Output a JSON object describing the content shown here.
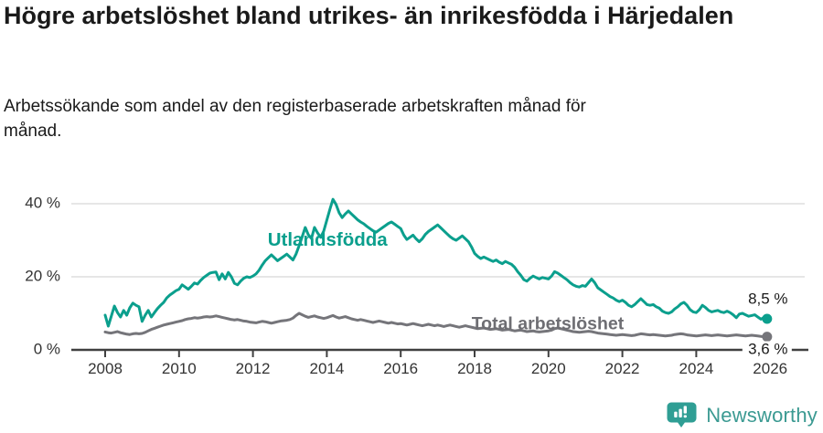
{
  "header": {
    "title": "Högre arbetslöshet bland utrikes- än inrikesfödda i Härjedalen",
    "subtitle": "Arbetssökande som andel av den registerbaserade arbetskraften månad för månad."
  },
  "footer": {
    "brand": "Newsworthy"
  },
  "colors": {
    "accent_teal": "#0b9f8d",
    "line_gray": "#75757a",
    "label_gray": "#6e6e73",
    "axis": "#404040",
    "tick_text": "#333333",
    "gridline": "#d8d8d8",
    "text_dark": "#1a1a1a",
    "logo_teal": "#2f9e94"
  },
  "chart_data": {
    "type": "line",
    "title": "Högre arbetslöshet bland utrikes- än inrikesfödda i Härjedalen",
    "subtitle": "Arbetssökande som andel av den registerbaserade arbetskraften månad för månad.",
    "frequency": "monthly",
    "x_start_year": 2008,
    "x_ticks": [
      2008,
      2010,
      2012,
      2014,
      2016,
      2018,
      2020,
      2022,
      2024,
      2026
    ],
    "y_ticks": [
      {
        "value": 0,
        "label": "0 %"
      },
      {
        "value": 20,
        "label": "20 %"
      },
      {
        "value": 40,
        "label": "40 %"
      }
    ],
    "ylim": [
      0,
      44
    ],
    "grid": "horizontal-only",
    "legend_position": "inline-labels",
    "series": [
      {
        "id": "utlandsfodda",
        "name": "Utlandsfödda",
        "color": "#0b9f8d",
        "label_color": "#0b9f8d",
        "end_label": "8,5 %",
        "end_label_position": "above",
        "inline_label": {
          "x_year": 2014.02,
          "y_pct": 29.8,
          "size": 20.5
        },
        "values": [
          9.5,
          6.5,
          9.2,
          12.0,
          10.2,
          9.0,
          10.8,
          9.5,
          11.5,
          12.8,
          12.2,
          11.8,
          7.8,
          9.5,
          10.8,
          9.0,
          10.2,
          11.3,
          12.2,
          13.0,
          14.2,
          15.0,
          15.6,
          16.2,
          16.6,
          17.8,
          17.2,
          16.6,
          17.4,
          18.3,
          18.0,
          19.0,
          19.8,
          20.4,
          21.0,
          21.2,
          21.3,
          19.2,
          20.8,
          19.4,
          21.2,
          20.0,
          18.2,
          17.8,
          18.8,
          19.6,
          20.0,
          19.8,
          20.2,
          20.8,
          21.8,
          23.2,
          24.4,
          25.2,
          26.0,
          25.2,
          24.4,
          25.0,
          25.6,
          26.2,
          25.4,
          24.6,
          26.2,
          28.5,
          31.0,
          33.5,
          31.5,
          30.5,
          33.5,
          32.0,
          30.8,
          32.5,
          35.5,
          38.5,
          41.2,
          39.8,
          37.5,
          36.2,
          37.2,
          38.0,
          37.2,
          36.4,
          35.6,
          35.0,
          34.5,
          33.8,
          33.2,
          32.6,
          32.2,
          32.8,
          33.4,
          34.0,
          34.6,
          35.0,
          34.4,
          33.8,
          33.2,
          31.4,
          30.2,
          30.8,
          31.4,
          30.4,
          29.6,
          30.4,
          31.6,
          32.4,
          33.0,
          33.6,
          34.2,
          33.4,
          32.6,
          31.8,
          31.0,
          30.4,
          30.0,
          30.6,
          31.2,
          30.4,
          29.6,
          28.2,
          26.4,
          25.6,
          25.0,
          25.4,
          25.0,
          24.6,
          24.2,
          24.6,
          24.0,
          23.6,
          24.2,
          23.8,
          23.4,
          22.6,
          21.4,
          20.4,
          19.2,
          18.8,
          19.6,
          20.2,
          19.8,
          19.4,
          19.8,
          19.6,
          19.4,
          20.2,
          21.4,
          21.0,
          20.4,
          19.8,
          19.2,
          18.4,
          17.8,
          17.4,
          17.2,
          17.6,
          17.4,
          18.4,
          19.4,
          18.4,
          17.0,
          16.4,
          15.8,
          15.2,
          14.6,
          14.2,
          13.6,
          13.2,
          13.6,
          13.0,
          12.2,
          11.8,
          12.4,
          13.2,
          14.0,
          13.2,
          12.4,
          12.2,
          12.4,
          11.8,
          11.4,
          10.6,
          10.2,
          10.0,
          10.4,
          11.2,
          11.8,
          12.6,
          13.0,
          12.2,
          11.0,
          10.4,
          10.2,
          11.0,
          12.2,
          11.6,
          10.8,
          10.4,
          10.6,
          10.8,
          10.4,
          10.2,
          10.6,
          10.2,
          9.6,
          8.8,
          9.8,
          10.0,
          9.6,
          9.2,
          9.4,
          9.6,
          9.0,
          8.4,
          8.9,
          8.5
        ]
      },
      {
        "id": "total",
        "name": "Total arbetslöshet",
        "color": "#75757a",
        "label_color": "#6e6e73",
        "end_label": "3,6 %",
        "end_label_position": "axis",
        "inline_label": {
          "x_year": 2019.98,
          "y_pct": 6.9,
          "size": 19.5
        },
        "values": [
          4.9,
          4.7,
          4.6,
          4.8,
          5.0,
          4.7,
          4.5,
          4.3,
          4.2,
          4.4,
          4.5,
          4.4,
          4.5,
          4.8,
          5.2,
          5.6,
          5.9,
          6.2,
          6.5,
          6.8,
          7.0,
          7.2,
          7.4,
          7.6,
          7.8,
          8.0,
          8.3,
          8.5,
          8.6,
          8.8,
          8.7,
          8.8,
          9.0,
          9.1,
          9.0,
          9.1,
          9.3,
          9.1,
          8.9,
          8.7,
          8.5,
          8.3,
          8.2,
          8.3,
          8.1,
          7.9,
          7.8,
          7.6,
          7.5,
          7.4,
          7.6,
          7.8,
          7.7,
          7.5,
          7.3,
          7.5,
          7.7,
          7.9,
          8.0,
          8.1,
          8.3,
          8.7,
          9.4,
          10.0,
          9.6,
          9.2,
          8.9,
          9.1,
          9.3,
          9.0,
          8.8,
          8.6,
          8.8,
          9.1,
          9.4,
          9.0,
          8.7,
          8.9,
          9.1,
          8.8,
          8.5,
          8.3,
          8.1,
          8.3,
          8.1,
          7.9,
          7.7,
          7.5,
          7.7,
          7.9,
          7.7,
          7.5,
          7.3,
          7.5,
          7.3,
          7.1,
          7.2,
          7.0,
          6.8,
          7.0,
          7.2,
          7.0,
          6.8,
          6.6,
          6.8,
          7.0,
          6.8,
          6.6,
          6.8,
          6.6,
          6.4,
          6.6,
          6.8,
          6.6,
          6.4,
          6.2,
          6.4,
          6.6,
          6.4,
          6.2,
          6.0,
          5.8,
          5.9,
          6.0,
          5.8,
          5.6,
          5.7,
          5.8,
          5.6,
          5.4,
          5.5,
          5.6,
          5.4,
          5.2,
          5.3,
          5.4,
          5.2,
          5.0,
          5.1,
          5.2,
          5.0,
          4.9,
          5.0,
          5.1,
          5.2,
          5.4,
          5.8,
          6.0,
          5.8,
          5.6,
          5.4,
          5.2,
          5.0,
          4.9,
          4.8,
          4.9,
          5.0,
          5.1,
          5.0,
          4.8,
          4.6,
          4.5,
          4.4,
          4.3,
          4.2,
          4.1,
          4.0,
          4.1,
          4.2,
          4.1,
          4.0,
          3.9,
          4.0,
          4.2,
          4.4,
          4.3,
          4.2,
          4.1,
          4.2,
          4.1,
          4.0,
          3.9,
          3.8,
          3.9,
          4.0,
          4.2,
          4.3,
          4.4,
          4.3,
          4.1,
          4.0,
          3.9,
          3.8,
          3.9,
          4.0,
          4.1,
          4.0,
          3.9,
          4.0,
          4.1,
          4.0,
          3.9,
          3.8,
          3.9,
          4.0,
          4.1,
          4.0,
          3.9,
          3.8,
          3.9,
          4.0,
          3.9,
          3.8,
          3.7,
          3.6,
          3.6
        ]
      }
    ]
  }
}
